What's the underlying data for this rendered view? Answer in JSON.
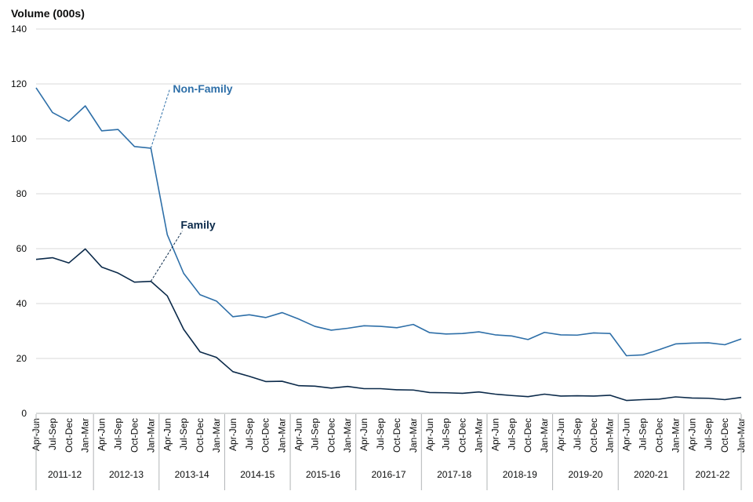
{
  "chart_data": {
    "type": "line",
    "ylabel": "Volume (000s)",
    "ylim": [
      0,
      140
    ],
    "yticks": [
      0,
      20,
      40,
      60,
      80,
      100,
      120,
      140
    ],
    "grid": true,
    "quarters": [
      "Apr-Jun",
      "Jul-Sep",
      "Oct-Dec",
      "Jan-Mar"
    ],
    "years": [
      "2011-12",
      "2012-13",
      "2013-14",
      "2014-15",
      "2015-16",
      "2016-17",
      "2017-18",
      "2018-19",
      "2019-20",
      "2020-21",
      "2021-22"
    ],
    "series": [
      {
        "name": "Non-Family",
        "color": "#2e6fa8",
        "values": [
          118.6,
          109.6,
          106.4,
          112.0,
          102.9,
          103.4,
          97.2,
          96.6,
          65.1,
          51.0,
          43.2,
          40.9,
          35.2,
          35.9,
          34.9,
          36.7,
          34.4,
          31.7,
          30.3,
          31.0,
          31.9,
          31.7,
          31.2,
          32.4,
          29.4,
          28.9,
          29.1,
          29.7,
          28.6,
          28.2,
          26.9,
          29.5,
          28.6,
          28.5,
          29.3,
          29.1,
          21.0,
          21.3,
          23.2,
          25.3,
          25.6,
          25.7,
          25.0,
          27.1
        ]
      },
      {
        "name": "Family",
        "color": "#0b2a4a",
        "values": [
          56.1,
          56.7,
          54.8,
          59.9,
          53.3,
          51.1,
          47.8,
          48.1,
          42.8,
          30.6,
          22.4,
          20.4,
          15.2,
          13.5,
          11.6,
          11.7,
          10.1,
          9.9,
          9.2,
          9.8,
          9.0,
          9.0,
          8.6,
          8.5,
          7.6,
          7.5,
          7.3,
          7.8,
          7.0,
          6.5,
          6.1,
          7.0,
          6.3,
          6.4,
          6.3,
          6.6,
          4.7,
          5.0,
          5.2,
          6.0,
          5.6,
          5.5,
          5.0,
          5.8
        ]
      }
    ]
  }
}
